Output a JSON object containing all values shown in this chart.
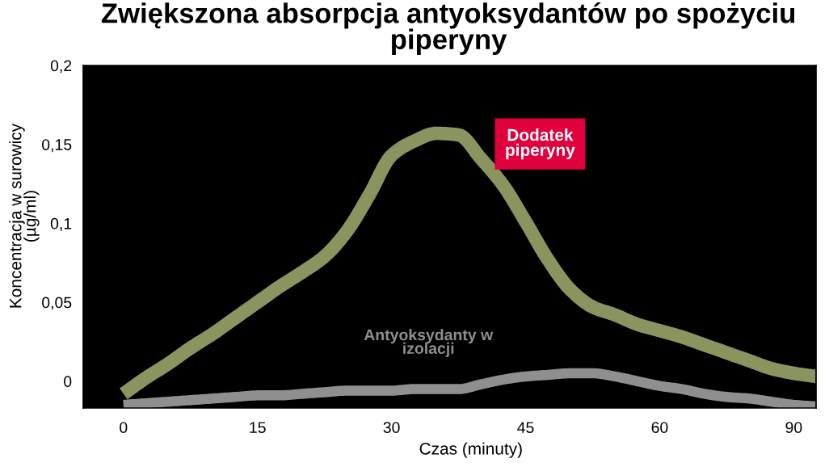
{
  "chart_data": {
    "type": "line",
    "title": "Zwiększona absorpcja antyoksydantów po spożyciu\npiperyny",
    "xlabel": "Czas (minuty)",
    "ylabel": "Koncentracja w surowicy\n(µg/ml)",
    "categories": [
      "0",
      null,
      null,
      null,
      null,
      null,
      "15",
      null,
      null,
      null,
      null,
      null,
      "30",
      null,
      null,
      null,
      null,
      null,
      "45",
      null,
      null,
      null,
      null,
      null,
      "60",
      null,
      null,
      null,
      null,
      null,
      "90",
      null
    ],
    "series": [
      {
        "name": "Dodatek\npiperyny",
        "color": "#8a945e",
        "values": [
          -0.008,
          0.002,
          0.011,
          0.021,
          0.03,
          0.04,
          0.05,
          0.06,
          0.069,
          0.079,
          0.095,
          0.118,
          0.143,
          0.152,
          0.157,
          0.156,
          0.141,
          0.124,
          0.101,
          0.077,
          0.058,
          0.047,
          0.042,
          0.036,
          0.032,
          0.028,
          0.023,
          0.018,
          0.013,
          0.008,
          0.005,
          0.003
        ]
      },
      {
        "name": "Antyoksydanty w\nizolacji",
        "color": "#8f8f8f",
        "values": [
          -0.015,
          -0.014,
          -0.013,
          -0.012,
          -0.011,
          -0.01,
          -0.009,
          -0.009,
          -0.008,
          -0.007,
          -0.006,
          -0.006,
          -0.006,
          -0.005,
          -0.005,
          -0.005,
          -0.002,
          0.001,
          0.003,
          0.004,
          0.005,
          0.005,
          0.003,
          0.0,
          -0.003,
          -0.005,
          -0.008,
          -0.01,
          -0.011,
          -0.013,
          -0.015,
          -0.016
        ]
      }
    ],
    "ylim": [
      -0.017,
      0.2
    ],
    "yticks": [
      0,
      {
        "value": 0.05,
        "label": "0,05"
      },
      {
        "value": 0.1,
        "label": "0,1"
      },
      {
        "value": 0.15,
        "label": "0,15"
      },
      {
        "value": 0.2,
        "label": "0,2"
      }
    ],
    "marker": "none",
    "line_style": "solid"
  }
}
